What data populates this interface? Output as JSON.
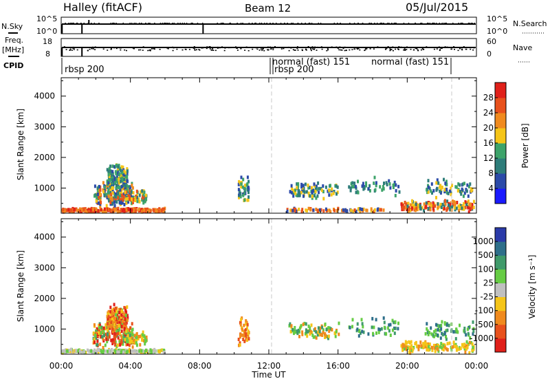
{
  "header": {
    "station": "Halley (fitACF)",
    "beam": "Beam 12",
    "date": "05/Jul/2015"
  },
  "strips": {
    "nsky_label": "N.Sky",
    "nsky_ticks": [
      "10^5",
      "10^0"
    ],
    "nsearch_label": "N.Search",
    "nsearch_ticks": [
      "10^5",
      "10^0"
    ],
    "freq_label_1": "Freq.",
    "freq_label_2": "[MHz]",
    "freq_ticks": [
      "18",
      "8"
    ],
    "nave_label": "Nave",
    "nave_ticks": [
      "60",
      "0"
    ],
    "cpid_label": "CPID",
    "cpid_segments": [
      {
        "label": "rbsp 200",
        "row": 2
      },
      {
        "label": "normal (fast) 151",
        "row": 1
      },
      {
        "label": "rbsp 200",
        "row": 2
      },
      {
        "label": "normal (fast) 151",
        "row": 1
      }
    ]
  },
  "axes": {
    "ylabel": "Slant Range [km]",
    "xlabel": "Time UT",
    "xticks": [
      "00:00",
      "04:00",
      "08:00",
      "12:00",
      "16:00",
      "20:00",
      "00:00"
    ],
    "yticks": [
      "1000",
      "2000",
      "3000",
      "4000"
    ]
  },
  "power_colorbar": {
    "label": "Power [dB]",
    "ticks": [
      "4",
      "8",
      "12",
      "16",
      "20",
      "24",
      "28"
    ],
    "colors": [
      "#1a1aff",
      "#2b4aa8",
      "#2e7d7a",
      "#3da36a",
      "#f5c518",
      "#f08a1e",
      "#e8511c",
      "#e0201a"
    ]
  },
  "velocity_colorbar": {
    "label": "Velocity [m s⁻¹]",
    "ticks": [
      "1000",
      "500",
      "100",
      "25",
      "-25",
      "-100",
      "-500",
      "-1000"
    ],
    "colors": [
      "#2a3aa8",
      "#2e6f8a",
      "#3f9a6a",
      "#66cc44",
      "#c0c0c0",
      "#f5c518",
      "#f08a1e",
      "#e8511c",
      "#e0201a"
    ]
  },
  "chart_data": [
    {
      "type": "heatmap",
      "title": "Power",
      "ylabel": "Slant Range [km]",
      "xlabel": "Time UT",
      "xlim": [
        0,
        24
      ],
      "ylim": [
        180,
        4600
      ],
      "clusters": [
        {
          "t0": 0.0,
          "t1": 6.0,
          "r0": 200,
          "r1": 330,
          "n": 260,
          "levels": [
            5,
            6,
            7,
            5,
            6
          ]
        },
        {
          "t0": 1.8,
          "t1": 4.1,
          "r0": 350,
          "r1": 1200,
          "n": 190,
          "levels": [
            1,
            2,
            3,
            4,
            5,
            6
          ]
        },
        {
          "t0": 2.6,
          "t1": 3.8,
          "r0": 800,
          "r1": 1800,
          "n": 160,
          "levels": [
            1,
            2,
            3,
            4,
            3
          ]
        },
        {
          "t0": 3.6,
          "t1": 4.9,
          "r0": 400,
          "r1": 950,
          "n": 60,
          "levels": [
            2,
            3,
            4,
            6
          ]
        },
        {
          "t0": 10.2,
          "t1": 10.8,
          "r0": 400,
          "r1": 1400,
          "n": 45,
          "levels": [
            1,
            2,
            3,
            4
          ]
        },
        {
          "t0": 13.1,
          "t1": 16.0,
          "r0": 600,
          "r1": 1200,
          "n": 90,
          "levels": [
            1,
            2,
            3,
            4
          ]
        },
        {
          "t0": 13.0,
          "t1": 18.6,
          "r0": 200,
          "r1": 330,
          "n": 80,
          "levels": [
            1,
            4,
            5,
            6
          ]
        },
        {
          "t0": 16.5,
          "t1": 19.5,
          "r0": 700,
          "r1": 1400,
          "n": 50,
          "levels": [
            1,
            2,
            3
          ]
        },
        {
          "t0": 19.6,
          "t1": 23.8,
          "r0": 200,
          "r1": 600,
          "n": 170,
          "levels": [
            4,
            5,
            6,
            7,
            2
          ]
        },
        {
          "t0": 21.0,
          "t1": 23.8,
          "r0": 600,
          "r1": 1300,
          "n": 70,
          "levels": [
            1,
            2,
            3,
            4
          ]
        }
      ]
    },
    {
      "type": "heatmap",
      "title": "Velocity",
      "ylabel": "Slant Range [km]",
      "xlabel": "Time UT",
      "xlim": [
        0,
        24
      ],
      "ylim": [
        180,
        4600
      ],
      "clusters": [
        {
          "t0": 0.0,
          "t1": 6.0,
          "r0": 200,
          "r1": 330,
          "n": 200,
          "levels": [
            3,
            4,
            3,
            5,
            4
          ]
        },
        {
          "t0": 1.8,
          "t1": 4.1,
          "r0": 350,
          "r1": 1200,
          "n": 190,
          "levels": [
            2,
            3,
            5,
            6,
            7,
            8
          ]
        },
        {
          "t0": 2.6,
          "t1": 3.8,
          "r0": 800,
          "r1": 1800,
          "n": 160,
          "levels": [
            5,
            6,
            7,
            8,
            3
          ]
        },
        {
          "t0": 3.6,
          "t1": 4.9,
          "r0": 400,
          "r1": 950,
          "n": 60,
          "levels": [
            3,
            5,
            6
          ]
        },
        {
          "t0": 10.2,
          "t1": 10.8,
          "r0": 400,
          "r1": 1400,
          "n": 45,
          "levels": [
            5,
            6,
            7
          ]
        },
        {
          "t0": 13.1,
          "t1": 16.0,
          "r0": 600,
          "r1": 1200,
          "n": 90,
          "levels": [
            5,
            6,
            3,
            2
          ]
        },
        {
          "t0": 16.5,
          "t1": 19.5,
          "r0": 700,
          "r1": 1400,
          "n": 50,
          "levels": [
            1,
            2,
            3
          ]
        },
        {
          "t0": 19.6,
          "t1": 23.8,
          "r0": 200,
          "r1": 600,
          "n": 140,
          "levels": [
            5,
            6,
            5,
            3
          ]
        },
        {
          "t0": 21.0,
          "t1": 23.8,
          "r0": 600,
          "r1": 1300,
          "n": 70,
          "levels": [
            1,
            2,
            3,
            3
          ]
        }
      ]
    }
  ]
}
